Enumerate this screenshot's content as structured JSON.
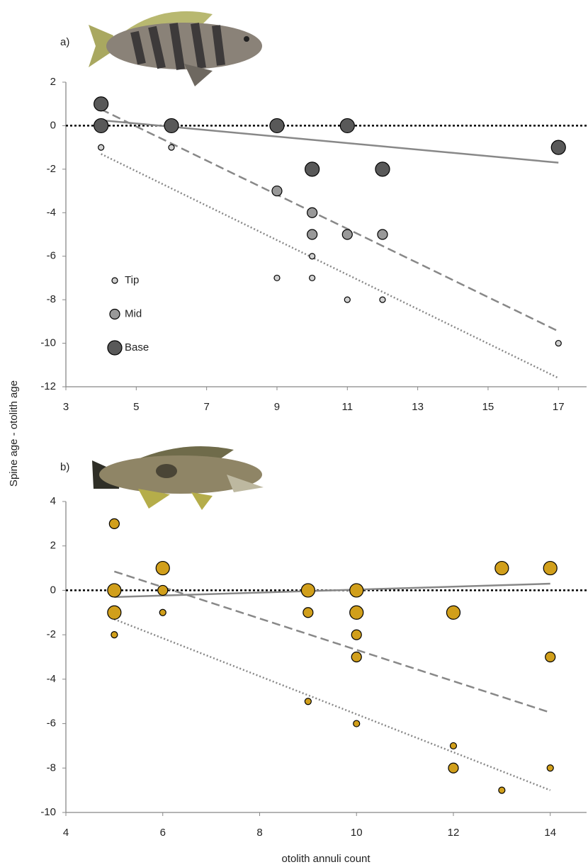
{
  "chart_data": [
    {
      "type": "scatter",
      "panel_label": "a)",
      "ylabel": "Spine age - otolith age",
      "xlim": [
        3,
        17.8
      ],
      "xticks": [
        3,
        5,
        7,
        9,
        11,
        13,
        15,
        17
      ],
      "ylim": [
        -12,
        2
      ],
      "yticks": [
        -12,
        -10,
        -8,
        -6,
        -4,
        -2,
        0,
        2
      ],
      "reference_line": 0,
      "legend": "left",
      "series": [
        {
          "name": "Tip",
          "color": "#d0d0d0",
          "x": [
            4,
            6,
            9,
            10,
            10,
            11,
            12,
            17
          ],
          "values": [
            -1,
            -1,
            -7,
            -6,
            -7,
            -8,
            -8,
            -10
          ]
        },
        {
          "name": "Mid",
          "color": "#999999",
          "x": [
            9,
            10,
            10,
            11,
            12
          ],
          "values": [
            -3,
            -4,
            -5,
            -5,
            -5
          ]
        },
        {
          "name": "Base",
          "color": "#595959",
          "x": [
            4,
            4,
            6,
            9,
            10,
            11,
            12,
            17
          ],
          "values": [
            1,
            0,
            0,
            0,
            -2,
            0,
            -2,
            -1
          ]
        }
      ],
      "trendlines": [
        {
          "style": "solid",
          "x": [
            4,
            17
          ],
          "values": [
            0.25,
            -1.7
          ]
        },
        {
          "style": "dashed",
          "x": [
            4,
            17
          ],
          "values": [
            0.75,
            -9.45
          ]
        },
        {
          "style": "dotted",
          "x": [
            4,
            17
          ],
          "values": [
            -1.3,
            -11.6
          ]
        }
      ]
    },
    {
      "type": "scatter",
      "panel_label": "b)",
      "xlabel": "otolith annuli count",
      "xlim": [
        4,
        14.75
      ],
      "xticks": [
        4,
        6,
        8,
        10,
        12,
        14
      ],
      "ylim": [
        -10,
        4
      ],
      "yticks": [
        -10,
        -8,
        -6,
        -4,
        -2,
        0,
        2,
        4
      ],
      "reference_line": 0,
      "series": [
        {
          "color": "#d19f1b",
          "x": [
            5,
            6,
            9,
            10,
            12,
            14,
            13
          ],
          "values": [
            -2,
            -1,
            -5,
            -6,
            -7,
            -8,
            -9
          ]
        },
        {
          "color": "#d19f1b",
          "x": [
            6,
            5,
            9,
            10,
            10,
            14,
            12
          ],
          "values": [
            0,
            3,
            -1,
            -2,
            -3,
            -3,
            -8
          ]
        },
        {
          "color": "#d19f1b",
          "x": [
            5,
            5,
            6,
            9,
            10,
            10,
            12,
            13,
            14
          ],
          "values": [
            0,
            -1,
            1,
            0,
            0,
            -1,
            -1,
            1,
            1
          ]
        }
      ],
      "trendlines": [
        {
          "style": "solid",
          "x": [
            5,
            14
          ],
          "values": [
            -0.3,
            0.3
          ]
        },
        {
          "style": "dashed",
          "x": [
            5,
            14
          ],
          "values": [
            0.85,
            -5.5
          ]
        },
        {
          "style": "dotted",
          "x": [
            5,
            14
          ],
          "values": [
            -1.3,
            -9
          ]
        }
      ]
    }
  ]
}
